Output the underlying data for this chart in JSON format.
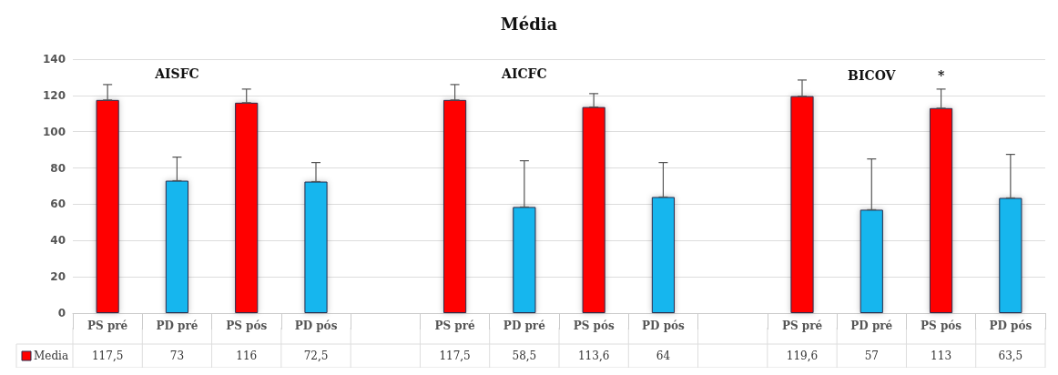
{
  "chart_data": {
    "type": "bar",
    "title": "Média",
    "categories": [
      "PS pré",
      "PD pré",
      "PS pós",
      "PD pós",
      null,
      "PS pré",
      "PD pré",
      "PS pós",
      "PD pós",
      null,
      "PS pré",
      "PD pré",
      "PS pós",
      "PD pós"
    ],
    "series": [
      {
        "name": "Media",
        "color": "#ff0000",
        "values": [
          117.5,
          73,
          116,
          72.5,
          null,
          117.5,
          58.5,
          113.6,
          64,
          null,
          119.6,
          57,
          113,
          63.5
        ],
        "colors": [
          "#ff0000",
          "#12b6ee",
          "#ff0000",
          "#12b6ee",
          null,
          "#ff0000",
          "#12b6ee",
          "#ff0000",
          "#12b6ee",
          null,
          "#ff0000",
          "#12b6ee",
          "#ff0000",
          "#12b6ee"
        ],
        "errors": [
          [
            117.5,
            126
          ],
          [
            73,
            86
          ],
          [
            116,
            123.5
          ],
          [
            72.5,
            83
          ],
          null,
          [
            117.5,
            126
          ],
          [
            58.5,
            84
          ],
          [
            113.6,
            121
          ],
          [
            64,
            83
          ],
          null,
          [
            119.6,
            128.5
          ],
          [
            57,
            85
          ],
          [
            113,
            123.5
          ],
          [
            63.5,
            87.5
          ]
        ],
        "value_labels": [
          "117,5",
          "73",
          "116",
          "72,5",
          null,
          "117,5",
          "58,5",
          "113,6",
          "64",
          null,
          "119,6",
          "57",
          "113",
          "63,5"
        ]
      }
    ],
    "annotations": [
      "AISFC",
      "AICFC",
      "BICOV",
      "*"
    ],
    "ylim": [
      0,
      140
    ],
    "yticks": [
      0,
      20,
      40,
      60,
      80,
      100,
      120,
      140
    ],
    "grid": "y"
  }
}
